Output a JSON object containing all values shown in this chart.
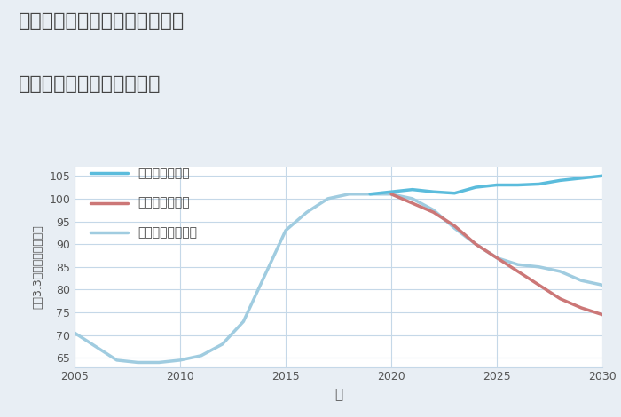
{
  "title_line1": "福岡県みやま市瀬高町大廣園の",
  "title_line2": "中古マンションの価格推移",
  "xlabel": "年",
  "ylabel": "坪（3.3㎡）単価（万円）",
  "background_color": "#e8eef4",
  "plot_bg_color": "#ffffff",
  "ylim": [
    63,
    107
  ],
  "xlim": [
    2005,
    2030
  ],
  "yticks": [
    65,
    70,
    75,
    80,
    85,
    90,
    95,
    100,
    105
  ],
  "xticks": [
    2005,
    2010,
    2015,
    2020,
    2025,
    2030
  ],
  "good_x": [
    2019,
    2020,
    2021,
    2022,
    2023,
    2024,
    2025,
    2026,
    2027,
    2028,
    2029,
    2030
  ],
  "good_y": [
    101,
    101.5,
    102,
    101.5,
    101.2,
    102.5,
    103,
    103,
    103.2,
    104,
    104.5,
    105
  ],
  "normal_x": [
    2005,
    2006,
    2007,
    2008,
    2009,
    2010,
    2011,
    2012,
    2013,
    2014,
    2015,
    2016,
    2017,
    2018,
    2019,
    2020,
    2021,
    2022,
    2023,
    2024,
    2025,
    2026,
    2027,
    2028,
    2029,
    2030
  ],
  "normal_y": [
    70.5,
    67.5,
    64.5,
    64,
    64,
    64.5,
    65.5,
    68,
    73,
    83,
    93,
    97,
    100,
    101,
    101,
    101,
    100,
    97.5,
    93.5,
    90,
    87,
    85.5,
    85,
    84,
    82,
    81
  ],
  "bad_x": [
    2020,
    2021,
    2022,
    2023,
    2024,
    2025,
    2026,
    2027,
    2028,
    2029,
    2030
  ],
  "bad_y": [
    101,
    99,
    97,
    94,
    90,
    87,
    84,
    81,
    78,
    76,
    74.5
  ],
  "good_color": "#5bbcdc",
  "normal_color": "#a0cce0",
  "bad_color": "#cc7777",
  "good_label": "グッドシナリオ",
  "bad_label": "バッドシナリオ",
  "normal_label": "ノーマルシナリオ",
  "title_color": "#444444",
  "axis_color": "#555555",
  "grid_color": "#c5d8e8",
  "tick_color": "#555555",
  "tick_fontsize": 9,
  "title_fontsize": 16,
  "legend_fontsize": 10
}
